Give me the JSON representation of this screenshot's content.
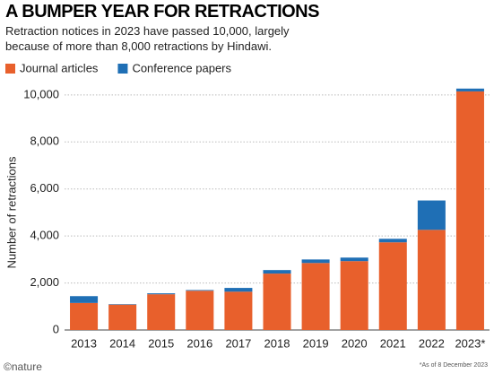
{
  "chart_data": {
    "type": "stacked_bar",
    "title": "A BUMPER YEAR FOR RETRACTIONS",
    "subtitle": "Retraction notices in 2023 have passed 10,000, largely because of more than 8,000 retractions by Hindawi.",
    "y_label": "Number of retractions",
    "source": "©nature",
    "footnote": "*As of 8 December 2023",
    "categories": [
      "2013",
      "2014",
      "2015",
      "2016",
      "2017",
      "2018",
      "2019",
      "2020",
      "2021",
      "2022",
      "2023*"
    ],
    "series": [
      {
        "name": "Journal articles",
        "color": "#e8602c",
        "values": [
          1150,
          1080,
          1520,
          1670,
          1630,
          2400,
          2850,
          2930,
          3730,
          4260,
          10150
        ]
      },
      {
        "name": "Conference papers",
        "color": "#1f6fb5",
        "values": [
          290,
          20,
          40,
          30,
          160,
          150,
          150,
          150,
          150,
          1250,
          120
        ]
      }
    ],
    "ylim": [
      0,
      10300
    ],
    "yticks": [
      0,
      {
        "value": 2000,
        "label": "2,000"
      },
      {
        "value": 4000,
        "label": "4,000"
      },
      {
        "value": 6000,
        "label": "6,000"
      },
      {
        "value": 8000,
        "label": "8,000"
      },
      {
        "value": 10000,
        "label": "10,000"
      }
    ],
    "grid": true
  }
}
